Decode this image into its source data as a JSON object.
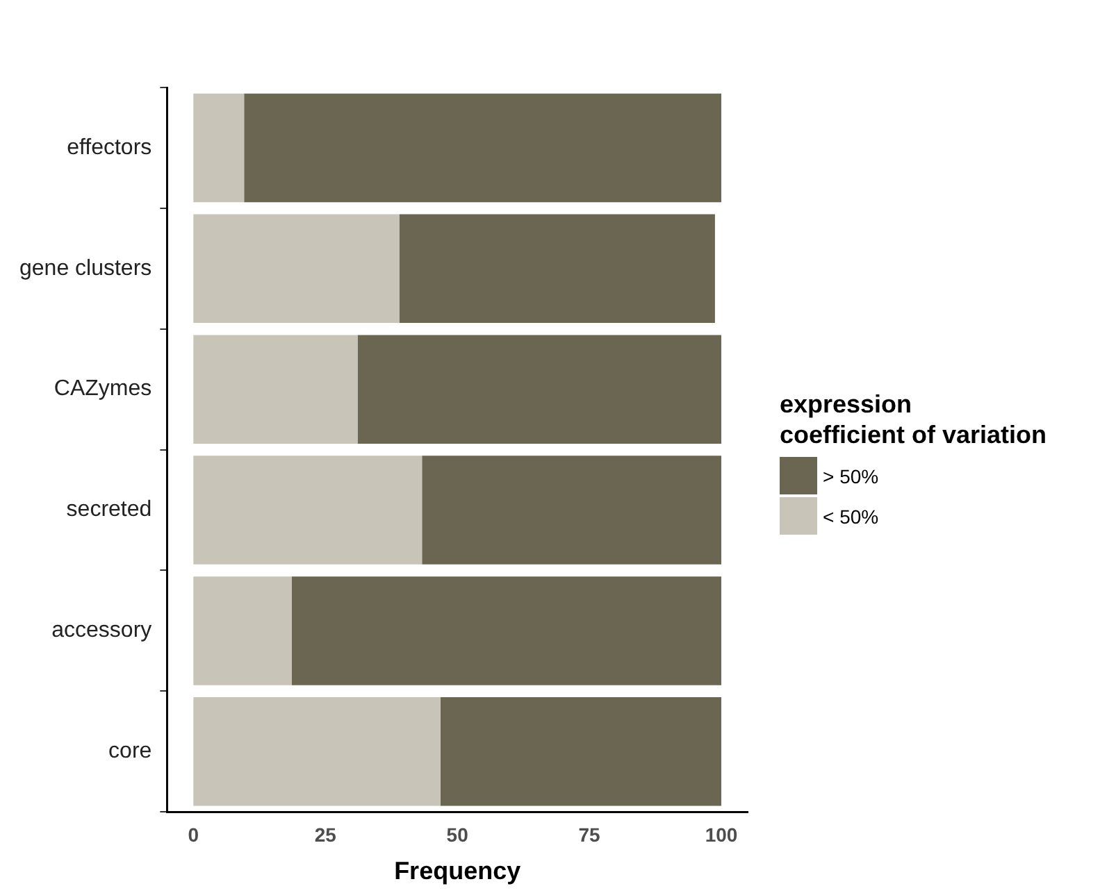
{
  "chart_data": {
    "type": "bar",
    "orientation": "horizontal",
    "stacked": true,
    "xlabel": "Frequency",
    "legend_title": "expression\ncoefficient of variation",
    "legend": "right",
    "categories": [
      "effectors",
      "gene clusters",
      "CAZymes",
      "secreted",
      "accessory",
      "core"
    ],
    "series": [
      {
        "name": "< 50%",
        "color": "#c8c4b8",
        "values": [
          9.6,
          39.0,
          31.1,
          43.3,
          18.6,
          46.8
        ]
      },
      {
        "name": "> 50%",
        "color": "#6b6651",
        "values": [
          90.4,
          59.8,
          68.9,
          56.7,
          81.4,
          53.2
        ]
      }
    ],
    "xlim": [
      -5,
      105
    ],
    "xticks": [
      0,
      25,
      50,
      75,
      100
    ],
    "grid": false
  }
}
